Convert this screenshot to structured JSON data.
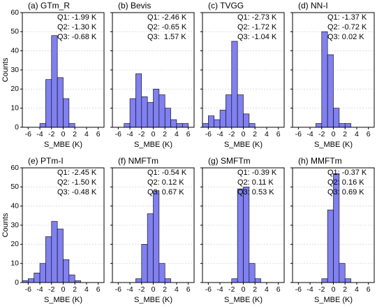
{
  "chart_data": [
    {
      "type": "histogram",
      "title": "(a) GTm_R",
      "xlabel": "S_MBE (K)",
      "ylabel": "Counts",
      "color": "#8080f0",
      "bins": [
        -4,
        -3,
        -2,
        -1,
        0,
        1,
        2
      ],
      "counts": [
        2,
        25,
        48,
        26,
        15,
        2
      ],
      "annotations": [
        "Q1: -1.99 K",
        "Q2: -1.30 K",
        "Q3: -0.68 K"
      ],
      "xlim": [
        -7,
        7
      ],
      "xticks": [
        -6,
        -4,
        -2,
        0,
        2,
        4,
        6
      ],
      "ylim": [
        0,
        60
      ],
      "yticks": [
        0,
        10,
        20,
        30,
        40,
        50,
        60
      ],
      "grid": true
    },
    {
      "type": "histogram",
      "title": "(b) Bevis",
      "xlabel": "S_MBE (K)",
      "color": "#8080f0",
      "bins": [
        -5,
        -4,
        -3,
        -2,
        -1,
        0,
        1,
        2,
        3,
        4,
        5,
        6
      ],
      "counts": [
        2,
        15,
        28,
        16,
        13,
        20,
        17,
        10,
        4,
        2,
        2
      ],
      "annotations": [
        "Q1: -2.46 K",
        "Q2: -0.65 K",
        "Q3:  1.57 K"
      ],
      "xlim": [
        -7,
        7
      ],
      "xticks": [
        -6,
        -4,
        -2,
        0,
        2,
        4,
        6
      ],
      "ylim": [
        0,
        60
      ],
      "yticks": [
        0,
        10,
        20,
        30,
        40,
        50,
        60
      ],
      "grid": true
    },
    {
      "type": "histogram",
      "title": "(c) TVGG",
      "xlabel": "S_MBE (K)",
      "color": "#8080f0",
      "bins": [
        -7,
        -6,
        -5,
        -4,
        -3,
        -2,
        -1,
        0,
        1,
        2
      ],
      "counts": [
        2,
        6,
        4,
        9,
        17,
        45,
        17,
        7,
        2
      ],
      "annotations": [
        "Q1: -2.73 K",
        "Q2: -1.72 K",
        "Q3: -1.04 K"
      ],
      "xlim": [
        -7,
        7
      ],
      "xticks": [
        -6,
        -4,
        -2,
        0,
        2,
        4,
        6
      ],
      "ylim": [
        0,
        60
      ],
      "yticks": [
        0,
        10,
        20,
        30,
        40,
        50,
        60
      ],
      "grid": true
    },
    {
      "type": "histogram",
      "title": "(d) NN-I",
      "xlabel": "S_MBE (K)",
      "color": "#8080f0",
      "bins": [
        -3,
        -2,
        -1,
        0,
        1,
        2,
        3
      ],
      "counts": [
        2,
        50,
        38,
        10,
        2,
        2
      ],
      "annotations": [
        "Q1: -1.37 K",
        "Q2: -0.72 K",
        "Q3: 0.02 K"
      ],
      "xlim": [
        -7,
        7
      ],
      "xticks": [
        -6,
        -4,
        -2,
        0,
        2,
        4,
        6
      ],
      "ylim": [
        0,
        60
      ],
      "yticks": [
        0,
        10,
        20,
        30,
        40,
        50,
        60
      ],
      "grid": true
    },
    {
      "type": "histogram",
      "title": "(e) PTm-I",
      "xlabel": "S_MBE (K)",
      "ylabel": "Counts",
      "color": "#8080f0",
      "bins": [
        -7,
        -6,
        -5,
        -4,
        -3,
        -2,
        -1,
        0,
        1,
        2,
        3
      ],
      "counts": [
        1,
        2,
        5,
        10,
        24,
        32,
        28,
        12,
        4,
        1
      ],
      "annotations": [
        "Q1: -2.45 K",
        "Q2: -1.50 K",
        "Q3: -0.48 K"
      ],
      "xlim": [
        -7,
        7
      ],
      "xticks": [
        -6,
        -4,
        -2,
        0,
        2,
        4,
        6
      ],
      "ylim": [
        0,
        60
      ],
      "yticks": [
        0,
        10,
        20,
        30,
        40,
        50,
        60
      ],
      "grid": true
    },
    {
      "type": "histogram",
      "title": "(f) NMFTm",
      "xlabel": "S_MBE (K)",
      "color": "#8080f0",
      "bins": [
        -3,
        -2,
        -1,
        0,
        1,
        2,
        3
      ],
      "counts": [
        2,
        20,
        36,
        48,
        10,
        2
      ],
      "annotations": [
        "Q1: -0.54 K",
        "Q2: 0.12 K",
        "Q3: 0.67 K"
      ],
      "xlim": [
        -7,
        7
      ],
      "xticks": [
        -6,
        -4,
        -2,
        0,
        2,
        4,
        6
      ],
      "ylim": [
        0,
        60
      ],
      "yticks": [
        0,
        10,
        20,
        30,
        40,
        50,
        60
      ],
      "grid": true
    },
    {
      "type": "histogram",
      "title": "(g) SMFTm",
      "xlabel": "S_MBE (K)",
      "color": "#8080f0",
      "bins": [
        -2,
        -1,
        0,
        1,
        2,
        3
      ],
      "counts": [
        2,
        49,
        50,
        10,
        2
      ],
      "annotations": [
        "Q1: -0.39 K",
        "Q2: 0.11 K",
        "Q3: 0.53 K"
      ],
      "xlim": [
        -7,
        7
      ],
      "xticks": [
        -6,
        -4,
        -2,
        0,
        2,
        4,
        6
      ],
      "ylim": [
        0,
        60
      ],
      "yticks": [
        0,
        10,
        20,
        30,
        40,
        50,
        60
      ],
      "grid": true
    },
    {
      "type": "histogram",
      "title": "(h) MMFTm",
      "xlabel": "S_MBE (K)",
      "color": "#8080f0",
      "bins": [
        -2,
        -1,
        0,
        1,
        2,
        3
      ],
      "counts": [
        2,
        38,
        57,
        10,
        2
      ],
      "annotations": [
        "Q1: -0.37 K",
        "Q2: 0.16 K",
        "Q3: 0.69 K"
      ],
      "xlim": [
        -7,
        7
      ],
      "xticks": [
        -6,
        -4,
        -2,
        0,
        2,
        4,
        6
      ],
      "ylim": [
        0,
        60
      ],
      "yticks": [
        0,
        10,
        20,
        30,
        40,
        50,
        60
      ],
      "grid": true
    }
  ]
}
